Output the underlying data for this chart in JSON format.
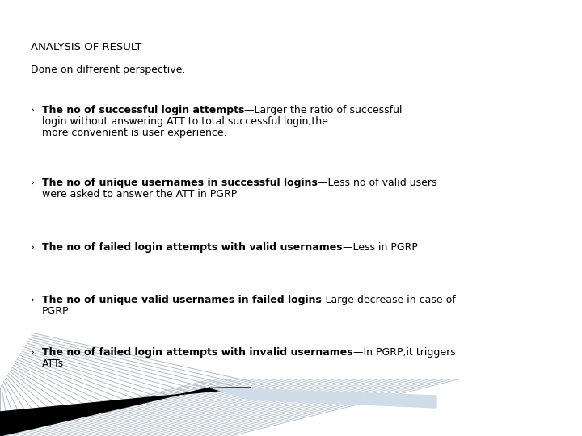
{
  "title": "ANALYSIS OF RESULT",
  "subtitle": "Done on different perspective.",
  "bullets": [
    {
      "bold": "The no of successful login attempts",
      "separator": "—",
      "normal": "Larger the ratio of successful login without answering ATT to total successful login,the more convenient is user experience."
    },
    {
      "bold": "The no of unique usernames in successful logins",
      "separator": "—",
      "normal": "Less no of valid users were asked to answer the ATT in PGRP"
    },
    {
      "bold": "The no of failed login attempts with valid usernames",
      "separator": "—",
      "normal": "Less in PGRP"
    },
    {
      "bold": "The no of unique valid usernames in failed logins",
      "separator": "-",
      "normal": "Large decrease in case of PGRP"
    },
    {
      "bold": "The no of failed login attempts with invalid usernames",
      "separator": "—",
      "normal": "In PGRP,it triggers  ATTs"
    }
  ],
  "bg_color": "#ffffff",
  "text_color": "#000000",
  "title_fontsize": 9.5,
  "body_fontsize": 9.0,
  "bullet_char": "›",
  "diag_lines_color": "#b0bcc8",
  "black_band_color": "#000000",
  "blue_band_color": "#d0dde8"
}
